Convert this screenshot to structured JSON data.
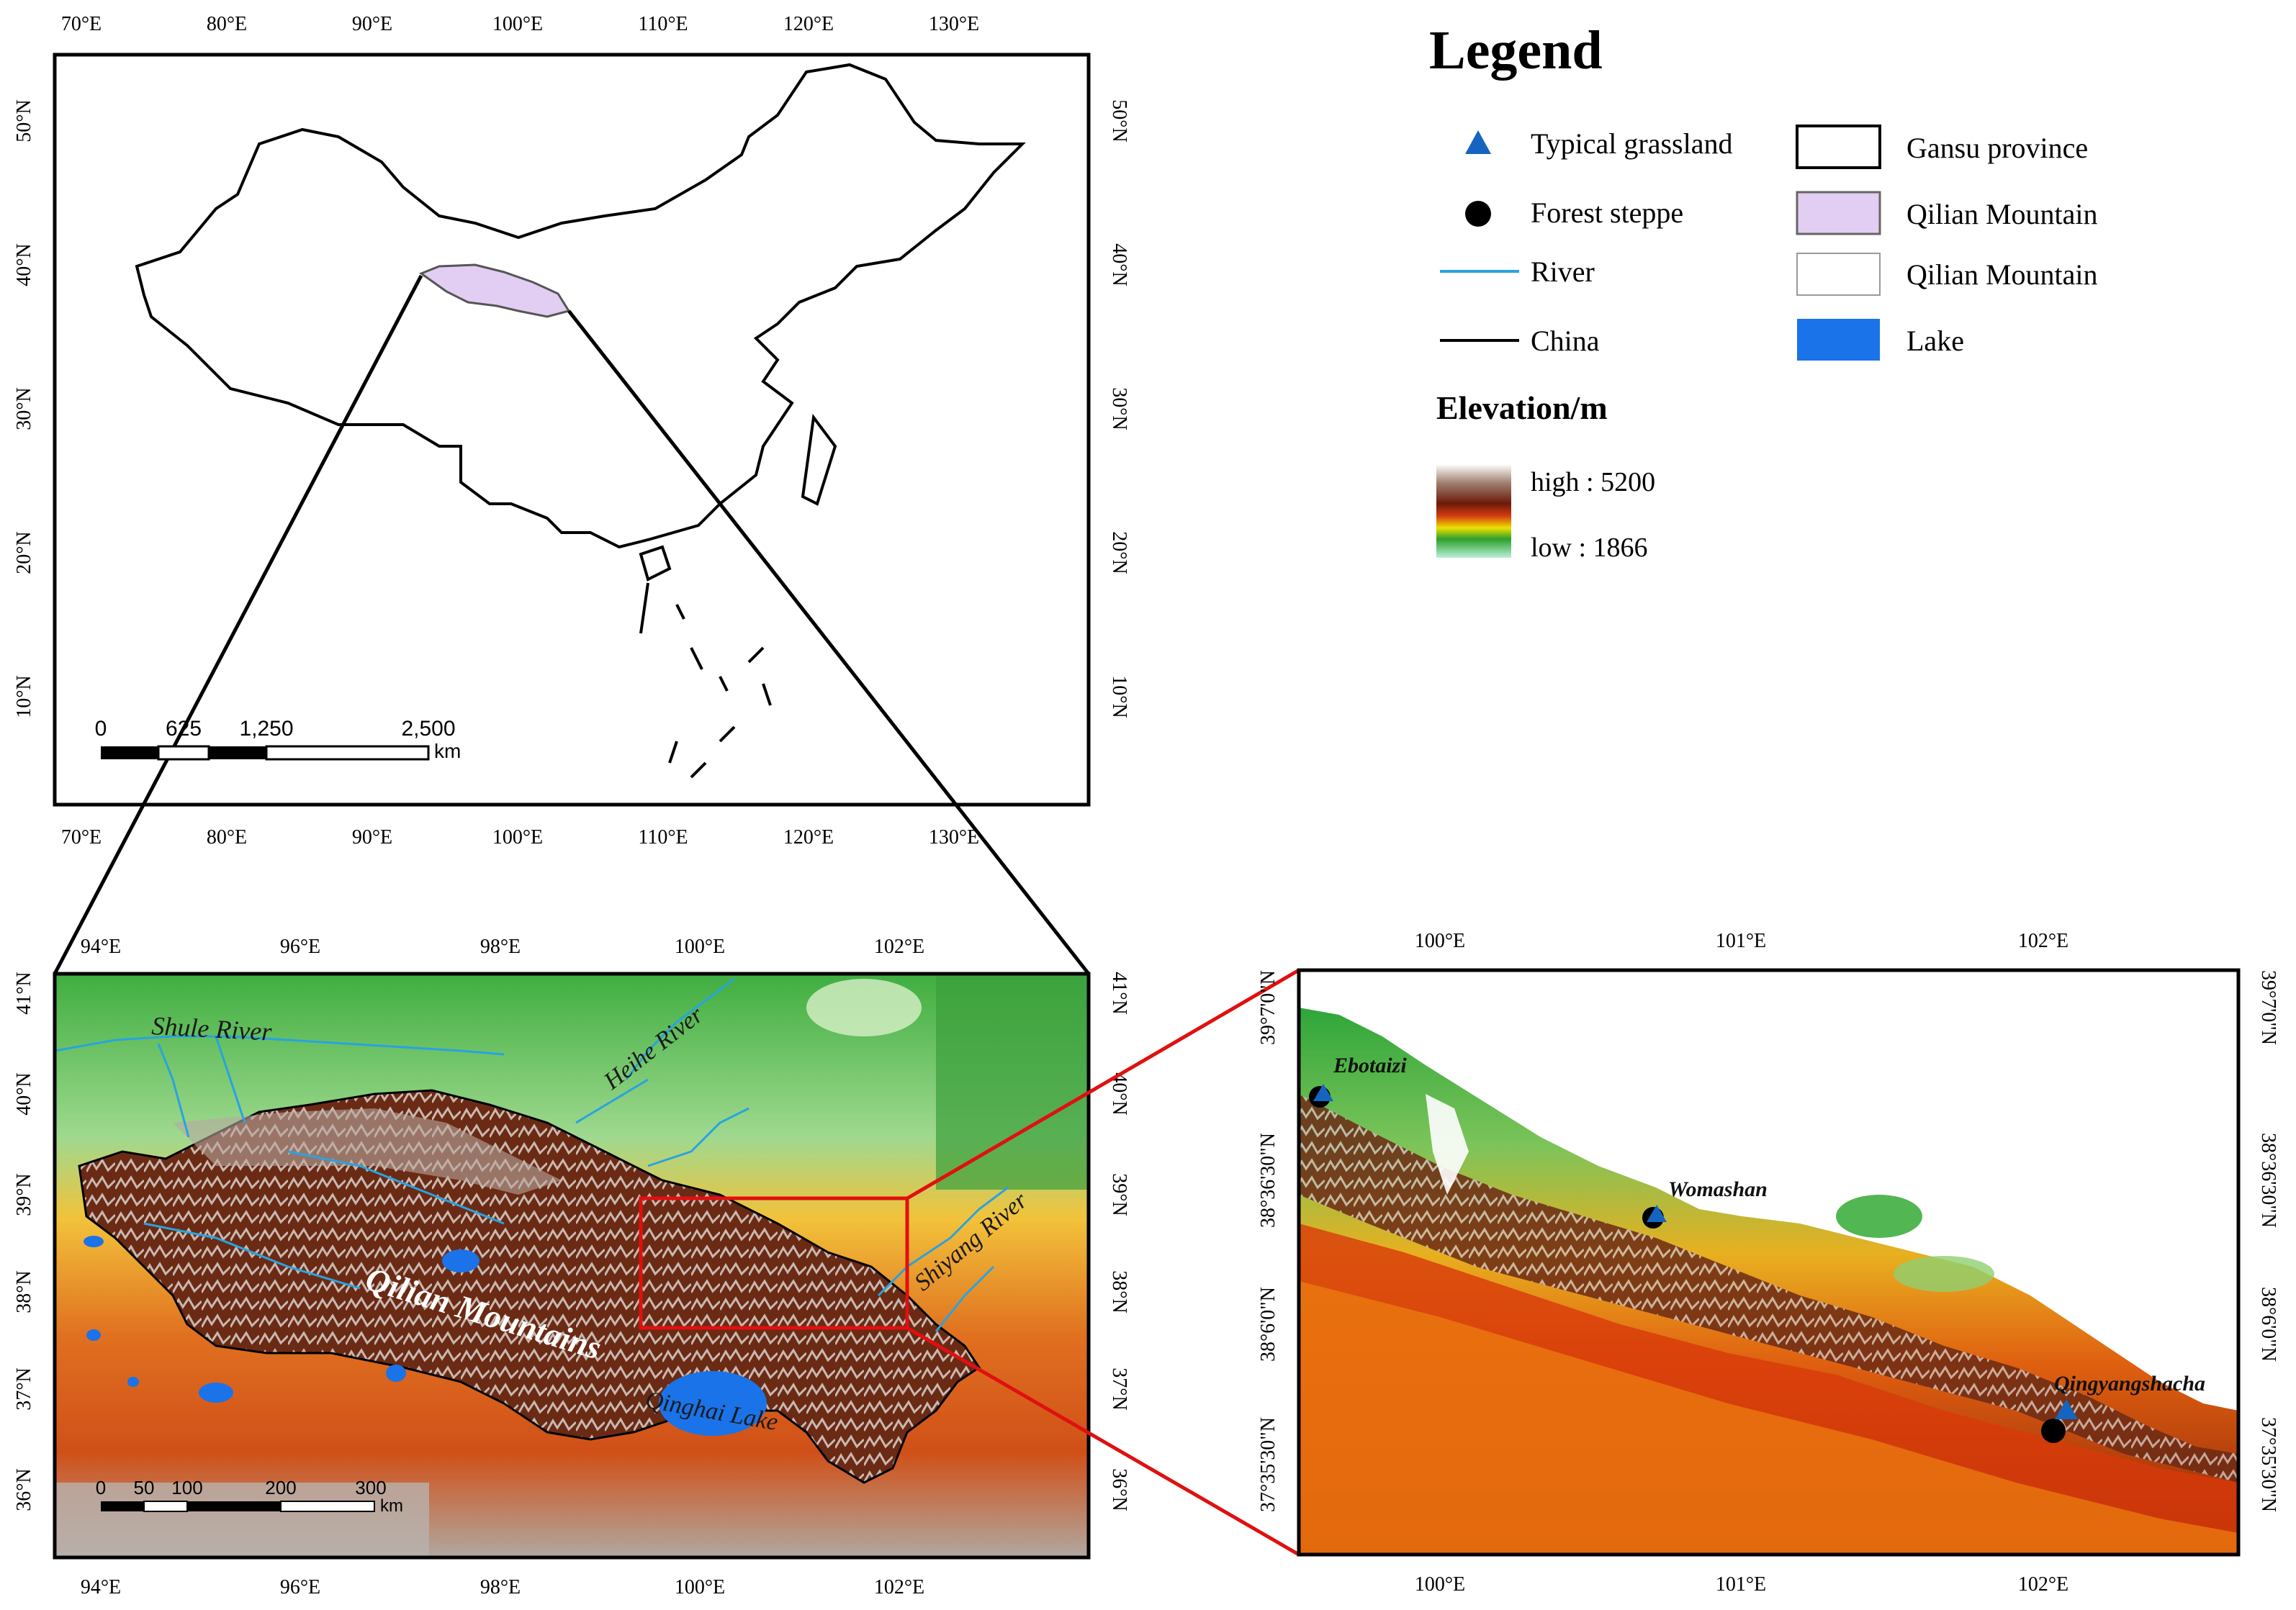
{
  "overview_map": {
    "top_lon_labels": [
      "70°E",
      "80°E",
      "90°E",
      "100°E",
      "110°E",
      "120°E",
      "130°E"
    ],
    "bottom_lon_labels": [
      "70°E",
      "80°E",
      "90°E",
      "100°E",
      "110°E",
      "120°E",
      "130°E"
    ],
    "lat_labels": [
      "50°N",
      "40°N",
      "30°N",
      "20°N",
      "10°N"
    ],
    "scale": {
      "ticks": [
        "0",
        "625",
        "1,250",
        "2,500"
      ],
      "unit": "km"
    }
  },
  "region_map": {
    "top_lon_labels": [
      "94°E",
      "96°E",
      "98°E",
      "100°E",
      "102°E"
    ],
    "bottom_lon_labels": [
      "94°E",
      "96°E",
      "98°E",
      "100°E",
      "102°E"
    ],
    "lat_labels": [
      "41°N",
      "40°N",
      "39°N",
      "38°N",
      "37°N",
      "36°N"
    ],
    "labels": {
      "shule": "Shule River",
      "heihe": "Heihe River",
      "shiyang": "Shiyang River",
      "qilian": "Qilian Mountains",
      "qinghai": "Qinghai Lake"
    },
    "scale": {
      "ticks": [
        "0",
        "50",
        "100",
        "200",
        "300"
      ],
      "unit": "km"
    }
  },
  "detail_map": {
    "top_lon_labels": [
      "100°E",
      "101°E",
      "102°E"
    ],
    "bottom_lon_labels": [
      "100°E",
      "101°E",
      "102°E"
    ],
    "lat_labels": [
      "39°7'0\"N",
      "38°36'30\"N",
      "38°6'0\"N",
      "37°35'30\"N"
    ],
    "sites": [
      {
        "name": "Ebotaizi",
        "lon": 99.6,
        "lat": 38.73
      },
      {
        "name": "Womashan",
        "lon": 100.7,
        "lat": 38.46
      },
      {
        "name": "Qingyangshacha",
        "lon": 102.07,
        "lat": 37.74
      }
    ]
  },
  "legend": {
    "title": "Legend",
    "items": [
      {
        "label": "Typical grassland",
        "symbol": "triangle",
        "color": "#1565c0"
      },
      {
        "label": "Forest steppe",
        "symbol": "circle",
        "color": "#000000"
      },
      {
        "label": "River",
        "symbol": "line",
        "color": "#29a3e0"
      },
      {
        "label": "China",
        "symbol": "line",
        "color": "#000000"
      }
    ],
    "items_right": [
      {
        "label": "Gansu province",
        "symbol": "box",
        "color": "#ffffff"
      },
      {
        "label": "Qilian Mountain",
        "symbol": "box",
        "color": "#e2cef2"
      },
      {
        "label": "Qilian Mountain",
        "symbol": "box",
        "color": "#ffffff"
      },
      {
        "label": "Lake",
        "symbol": "box",
        "color": "#1a73e8"
      }
    ],
    "elevation": {
      "title": "Elevation/m",
      "high": "high : 5200",
      "low": "low : 1866"
    }
  }
}
